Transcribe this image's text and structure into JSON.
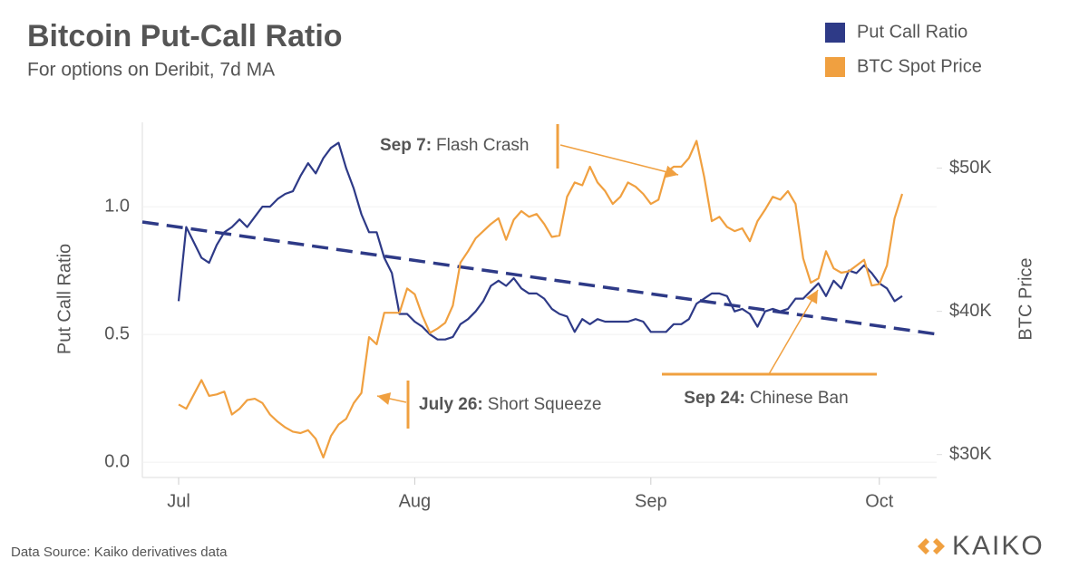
{
  "chart_data": {
    "type": "line",
    "title": "Bitcoin Put-Call Ratio",
    "subtitle": "For options on Deribit, 7d MA",
    "ylabel": "Put Call Ratio",
    "y2label": "BTC Price",
    "source": "Data Source: Kaiko derivatives data",
    "logo": "KAIKO",
    "categories": [
      "Jul",
      null,
      null,
      null,
      null,
      null,
      null,
      null,
      null,
      null,
      null,
      null,
      null,
      null,
      null,
      null,
      null,
      null,
      null,
      null,
      null,
      null,
      null,
      null,
      null,
      null,
      null,
      null,
      null,
      null,
      null,
      "Aug",
      null,
      null,
      null,
      null,
      null,
      null,
      null,
      null,
      null,
      null,
      null,
      null,
      null,
      null,
      null,
      null,
      null,
      null,
      null,
      null,
      null,
      null,
      null,
      null,
      null,
      null,
      null,
      null,
      null,
      null,
      "Sep",
      null,
      null,
      null,
      null,
      null,
      null,
      null,
      null,
      null,
      null,
      null,
      null,
      null,
      null,
      null,
      null,
      null,
      null,
      null,
      null,
      null,
      null,
      null,
      null,
      null,
      null,
      null,
      null,
      null,
      "Oct",
      null,
      null,
      null
    ],
    "ylim": [
      -0.06,
      1.33
    ],
    "yticks": [
      {
        "value": 0,
        "label": "0.0"
      },
      0.5,
      {
        "value": 1,
        "label": "1.0"
      }
    ],
    "y2lim": [
      28400,
      53200
    ],
    "y2ticks": [
      {
        "value": 30000,
        "label": "$30K"
      },
      {
        "value": 40000,
        "label": "$40K"
      },
      {
        "value": 50000,
        "label": "$50K"
      }
    ],
    "grid": true,
    "legend": "top-right",
    "series": [
      {
        "name": "Put Call Ratio",
        "color": "#2e3a87",
        "values": [
          0.63,
          0.92,
          0.86,
          0.8,
          0.78,
          0.85,
          0.9,
          0.92,
          0.95,
          0.92,
          0.96,
          1.0,
          1.0,
          1.03,
          1.05,
          1.06,
          1.12,
          1.17,
          1.13,
          1.19,
          1.23,
          1.25,
          1.15,
          1.07,
          0.97,
          0.9,
          0.9,
          0.8,
          0.74,
          0.58,
          0.58,
          0.55,
          0.53,
          0.5,
          0.48,
          0.48,
          0.49,
          0.54,
          0.56,
          0.59,
          0.63,
          0.69,
          0.71,
          0.69,
          0.72,
          0.68,
          0.66,
          0.66,
          0.64,
          0.6,
          0.58,
          0.57,
          0.51,
          0.56,
          0.54,
          0.56,
          0.55,
          0.55,
          0.55,
          0.55,
          0.56,
          0.55,
          0.51,
          0.51,
          0.51,
          0.54,
          0.54,
          0.56,
          0.62,
          0.64,
          0.66,
          0.66,
          0.65,
          0.59,
          0.6,
          0.58,
          0.53,
          0.59,
          0.6,
          0.59,
          0.6,
          0.64,
          0.64,
          0.67,
          0.7,
          0.65,
          0.71,
          0.68,
          0.75,
          0.74,
          0.77,
          0.74,
          0.7,
          0.68,
          0.63,
          0.65
        ]
      },
      {
        "name": "BTC Spot Price",
        "color": "#f0a040",
        "axis": "y2",
        "values": [
          33500,
          33200,
          34200,
          35200,
          34100,
          34200,
          34400,
          32800,
          33200,
          33800,
          33900,
          33600,
          32800,
          32300,
          31900,
          31600,
          31500,
          31700,
          31100,
          29800,
          31300,
          32100,
          32500,
          33600,
          34300,
          38200,
          37700,
          39900,
          39900,
          39900,
          41600,
          41200,
          39700,
          38500,
          38800,
          39200,
          40400,
          43400,
          44200,
          45100,
          45600,
          46100,
          46500,
          45000,
          46400,
          47000,
          46600,
          46800,
          46100,
          45200,
          45300,
          48000,
          49000,
          48800,
          50100,
          49000,
          48400,
          47500,
          48000,
          49000,
          48700,
          48200,
          47500,
          47800,
          49700,
          50100,
          50100,
          50700,
          51900,
          49400,
          46300,
          46600,
          45900,
          45600,
          45800,
          44900,
          46300,
          47100,
          48000,
          47800,
          48400,
          47500,
          43700,
          42000,
          42300,
          44200,
          43000,
          42700,
          42800,
          43200,
          43600,
          41800,
          41900,
          43200,
          46500,
          48200
        ]
      }
    ],
    "trend_line": {
      "color": "#2e3a87",
      "start": 0.92,
      "end": 0.52
    },
    "annotations": [
      {
        "label": "Sep 7:",
        "text": "Flash Crash"
      },
      {
        "label": "July 26:",
        "text": "Short Squeeze"
      },
      {
        "label": "Sep 24:",
        "text": "Chinese Ban"
      }
    ]
  }
}
